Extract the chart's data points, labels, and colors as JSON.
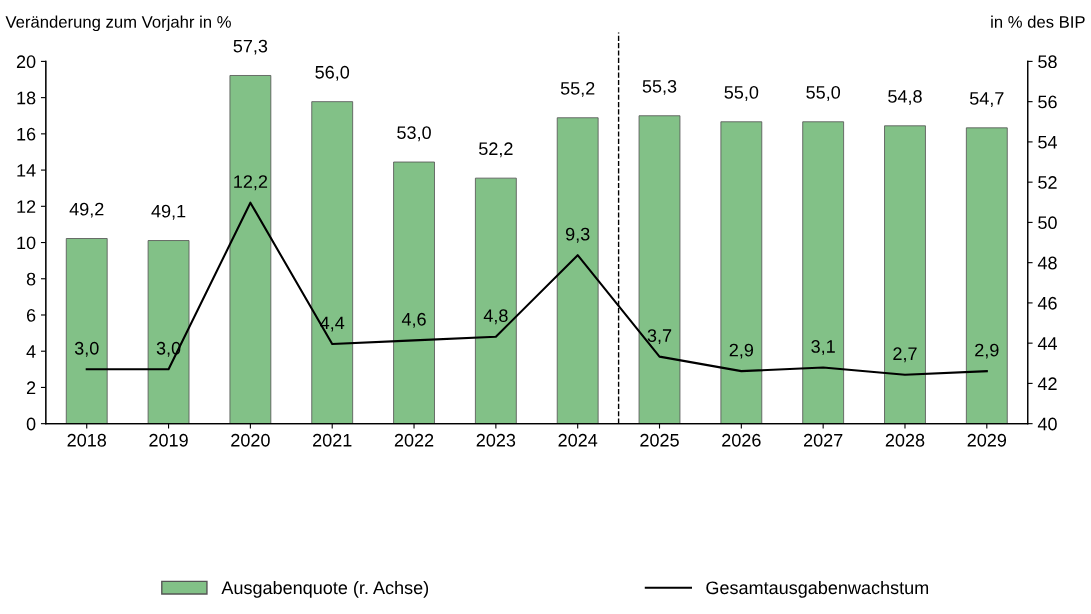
{
  "chart_data": {
    "type": "bar",
    "ylabel": "Veränderung zum Vorjahr in %",
    "y2label": "in % des BIP",
    "categories": [
      "2018",
      "2019",
      "2020",
      "2021",
      "2022",
      "2023",
      "2024",
      "2025",
      "2026",
      "2027",
      "2028",
      "2029"
    ],
    "series": [
      {
        "name": "Ausgabenquote (r. Achse)",
        "axis": "y2",
        "color": "#82c187",
        "values": [
          49.2,
          49.1,
          57.3,
          56.0,
          53.0,
          52.2,
          55.2,
          55.3,
          55.0,
          55.0,
          54.8,
          54.7
        ],
        "value_labels": [
          "49,2",
          "49,1",
          "57,3",
          "56,0",
          "53,0",
          "52,2",
          "55,2",
          "55,3",
          "55,0",
          "55,0",
          "54,8",
          "54,7"
        ]
      },
      {
        "name": "Gesamtausgabenwachstum",
        "type": "line",
        "color": "#000000",
        "values": [
          3.0,
          3.0,
          12.2,
          4.4,
          4.6,
          4.8,
          9.3,
          3.7,
          2.9,
          3.1,
          2.7,
          2.9
        ],
        "value_labels": [
          "3,0",
          "3,0",
          "12,2",
          "4,4",
          "4,6",
          "4,8",
          "9,3",
          "3,7",
          "2,9",
          "3,1",
          "2,7",
          "2,9"
        ]
      }
    ],
    "ylim": [
      0,
      20
    ],
    "yticks": [
      0,
      2,
      4,
      6,
      8,
      10,
      12,
      14,
      16,
      18,
      20
    ],
    "y2lim": [
      40,
      58
    ],
    "y2ticks": [
      40,
      42,
      44,
      46,
      48,
      50,
      52,
      54,
      56,
      58
    ],
    "grid": false,
    "legend": "bottom",
    "marker": "none",
    "line_style": "solid"
  }
}
